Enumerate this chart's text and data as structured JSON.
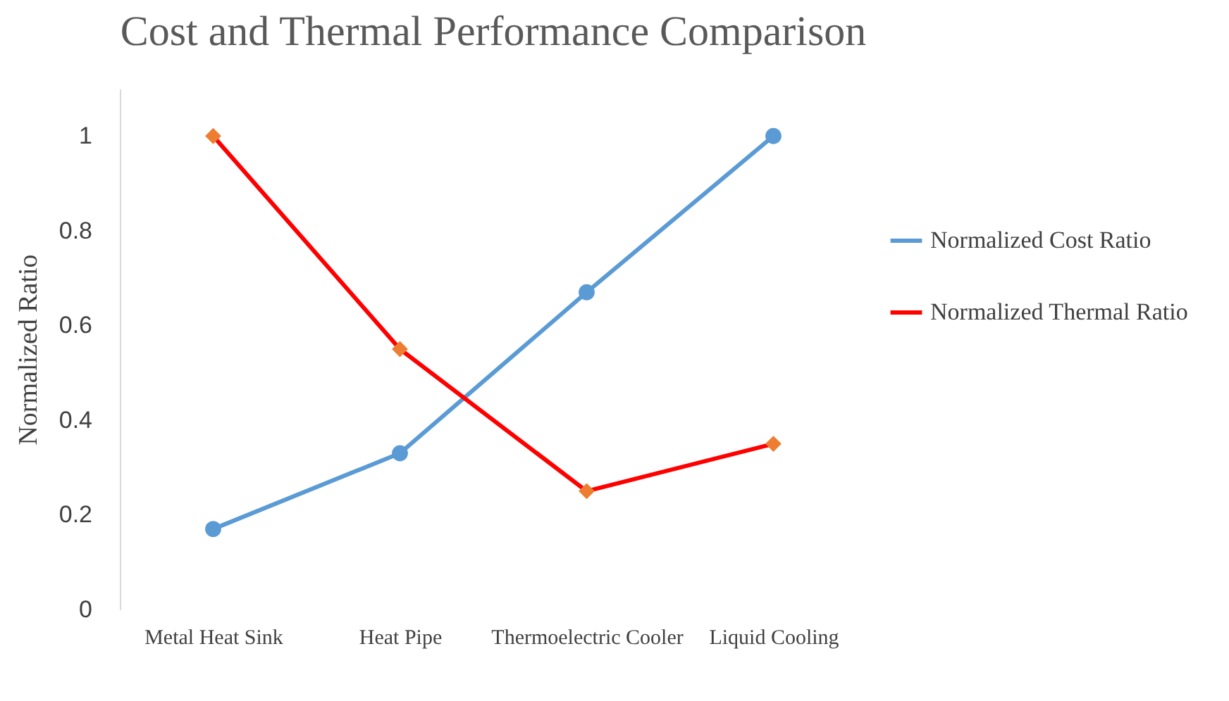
{
  "chart_data": {
    "type": "line",
    "title": "Cost and Thermal Performance Comparison",
    "ylabel": "Normalized Ratio",
    "categories": [
      "Metal Heat Sink",
      "Heat Pipe",
      "Thermoelectric Cooler",
      "Liquid Cooling"
    ],
    "series": [
      {
        "name": "Normalized Cost Ratio",
        "color": "#5b9bd5",
        "marker": "circle",
        "values": [
          0.17,
          0.33,
          0.67,
          1.0
        ]
      },
      {
        "name": "Normalized Thermal Ratio",
        "color": "#ff0000",
        "colors": [
          "#ed7d31",
          "#ed7d31",
          "#ed7d31",
          "#ed7d31"
        ],
        "marker": "diamond",
        "values": [
          1.0,
          0.55,
          0.25,
          0.35
        ]
      }
    ],
    "ylim": [
      0,
      1.1
    ],
    "yticks": [
      0,
      0.2,
      0.4,
      0.6,
      0.8,
      1
    ],
    "grid": false,
    "legend": "right",
    "line_style": "solid"
  }
}
